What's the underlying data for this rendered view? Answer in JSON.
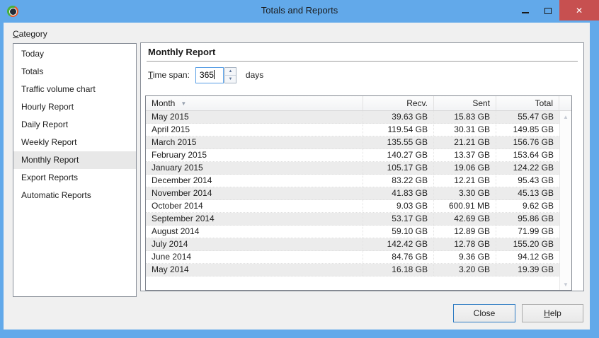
{
  "window": {
    "title": "Totals and Reports",
    "close_glyph": "✕"
  },
  "sidebar": {
    "label_mnemonic": "C",
    "label_rest": "ategory",
    "items": [
      {
        "label": "Today",
        "selected": false
      },
      {
        "label": "Totals",
        "selected": false
      },
      {
        "label": "Traffic volume chart",
        "selected": false
      },
      {
        "label": "Hourly Report",
        "selected": false
      },
      {
        "label": "Daily Report",
        "selected": false
      },
      {
        "label": "Weekly Report",
        "selected": false
      },
      {
        "label": "Monthly Report",
        "selected": true
      },
      {
        "label": "Export Reports",
        "selected": false
      },
      {
        "label": "Automatic Reports",
        "selected": false
      }
    ]
  },
  "main": {
    "heading": "Monthly Report",
    "time_span": {
      "label_mnemonic": "T",
      "label_rest": "ime span:",
      "value": "365",
      "unit": "days"
    }
  },
  "table": {
    "columns": {
      "month": "Month",
      "recv": "Recv.",
      "sent": "Sent",
      "total": "Total"
    },
    "sort": {
      "column": "Month",
      "direction": "desc",
      "glyph": "▼"
    },
    "rows": [
      {
        "month": "May 2015",
        "recv": "39.63 GB",
        "sent": "15.83 GB",
        "total": "55.47 GB"
      },
      {
        "month": "April 2015",
        "recv": "119.54 GB",
        "sent": "30.31 GB",
        "total": "149.85 GB"
      },
      {
        "month": "March 2015",
        "recv": "135.55 GB",
        "sent": "21.21 GB",
        "total": "156.76 GB"
      },
      {
        "month": "February 2015",
        "recv": "140.27 GB",
        "sent": "13.37 GB",
        "total": "153.64 GB"
      },
      {
        "month": "January 2015",
        "recv": "105.17 GB",
        "sent": "19.06 GB",
        "total": "124.22 GB"
      },
      {
        "month": "December 2014",
        "recv": "83.22 GB",
        "sent": "12.21 GB",
        "total": "95.43 GB"
      },
      {
        "month": "November 2014",
        "recv": "41.83 GB",
        "sent": "3.30 GB",
        "total": "45.13 GB"
      },
      {
        "month": "October 2014",
        "recv": "9.03 GB",
        "sent": "600.91 MB",
        "total": "9.62 GB"
      },
      {
        "month": "September 2014",
        "recv": "53.17 GB",
        "sent": "42.69 GB",
        "total": "95.86 GB"
      },
      {
        "month": "August 2014",
        "recv": "59.10 GB",
        "sent": "12.89 GB",
        "total": "71.99 GB"
      },
      {
        "month": "July 2014",
        "recv": "142.42 GB",
        "sent": "12.78 GB",
        "total": "155.20 GB"
      },
      {
        "month": "June 2014",
        "recv": "84.76 GB",
        "sent": "9.36 GB",
        "total": "94.12 GB"
      },
      {
        "month": "May 2014",
        "recv": "16.18 GB",
        "sent": "3.20 GB",
        "total": "19.39 GB"
      }
    ]
  },
  "footer": {
    "close_label": "Close",
    "help_label_mnemonic": "H",
    "help_label_rest": "elp"
  },
  "icons": {
    "spinner_up": "▲",
    "spinner_down": "▼",
    "scroll_up": "▲",
    "scroll_down": "▼"
  },
  "colors": {
    "titlebar": "#62A9EA",
    "close_button_bg": "#C75050",
    "content_bg": "#F0F0F0",
    "panel_bg": "#FFFFFF",
    "border_gray": "#8A9099",
    "row_alt_bg": "#ECECEC",
    "selected_item_bg": "#E8E8E8",
    "focus_border_blue": "#2F7CC3",
    "input_focus_border": "#569DE5"
  }
}
